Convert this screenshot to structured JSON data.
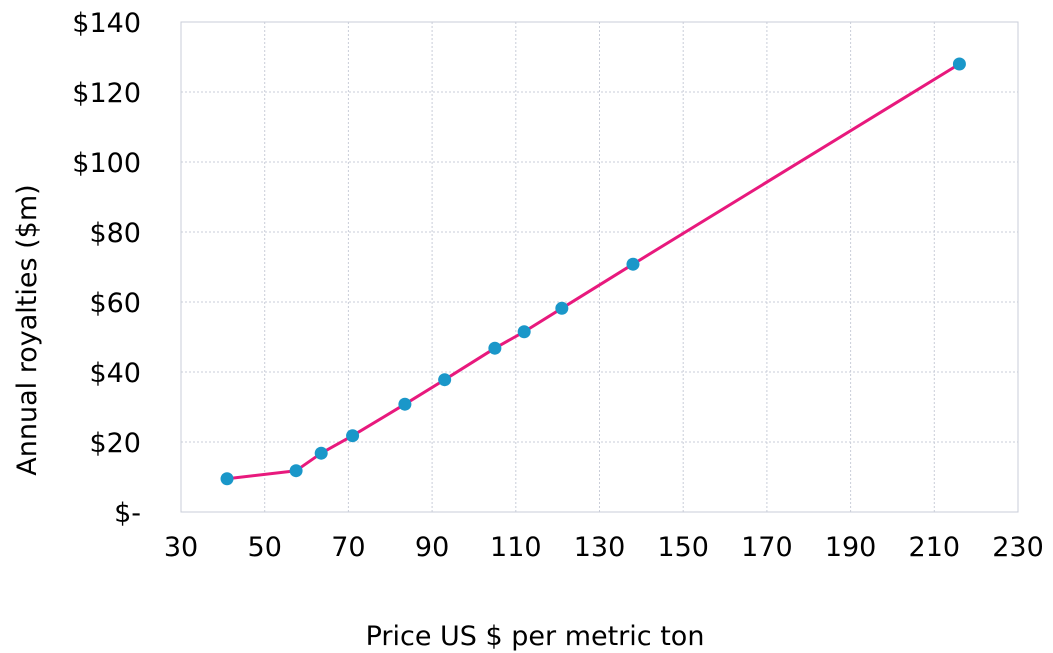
{
  "chart_data": {
    "type": "line",
    "title": "",
    "xlabel": "Price US $ per metric ton",
    "ylabel": "Annual royalties ($m)",
    "xlim": [
      30,
      230
    ],
    "ylim": [
      0,
      140
    ],
    "x_ticks": [
      30,
      50,
      70,
      90,
      110,
      130,
      150,
      170,
      190,
      210,
      230
    ],
    "x_tick_labels": [
      "30",
      "50",
      "70",
      "90",
      "110",
      "130",
      "150",
      "170",
      "190",
      "210",
      "230"
    ],
    "y_ticks": [
      0,
      20,
      40,
      60,
      80,
      100,
      120,
      140
    ],
    "y_tick_labels": [
      "$-",
      "$20",
      "$40",
      "$60",
      "$80",
      "$100",
      "$120",
      "$140"
    ],
    "grid": true,
    "legend": "none",
    "series": [
      {
        "line_color": "#e8197d",
        "marker_color": "#1a97c9",
        "points": [
          {
            "x": 41,
            "y": 9.5
          },
          {
            "x": 57.5,
            "y": 11.8
          },
          {
            "x": 63.5,
            "y": 16.8
          },
          {
            "x": 71,
            "y": 21.8
          },
          {
            "x": 83.5,
            "y": 30.8
          },
          {
            "x": 93,
            "y": 37.8
          },
          {
            "x": 105,
            "y": 46.8
          },
          {
            "x": 112,
            "y": 51.5
          },
          {
            "x": 121,
            "y": 58.2
          },
          {
            "x": 138,
            "y": 70.8
          },
          {
            "x": 216,
            "y": 128
          }
        ]
      }
    ]
  }
}
